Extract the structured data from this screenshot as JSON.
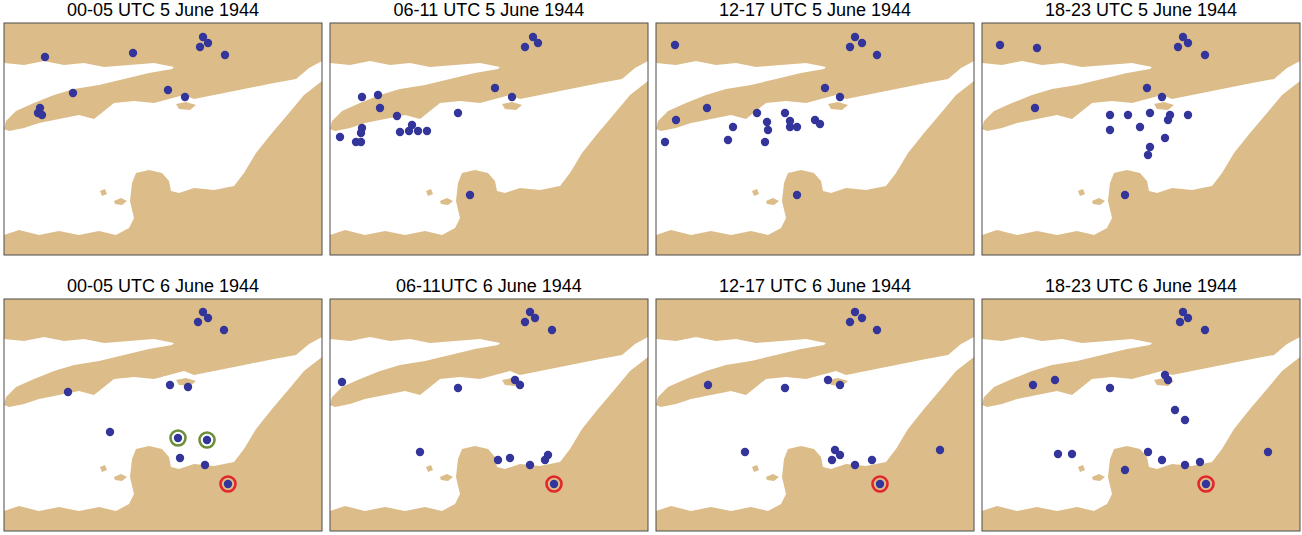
{
  "chart_data": [
    {
      "type": "scatter",
      "title": "00-05 UTC 5 June 1944",
      "color": "#34359a",
      "marker": "circle",
      "tick_labels": false,
      "xlim": [
        -6,
        1.95
      ],
      "ylim": [
        47.56,
        52.2
      ],
      "x": [
        -4.975,
        -2.775,
        -1.025,
        -0.9,
        -1.1,
        -0.475,
        -4.275,
        -1.9,
        -1.475,
        -5.1,
        -5.15,
        -5.05
      ],
      "y": [
        51.52,
        51.6,
        51.92,
        51.8,
        51.72,
        51.56,
        50.8,
        50.86,
        50.72,
        50.5,
        50.4,
        50.36
      ]
    },
    {
      "type": "scatter",
      "title": "06-11 UTC 5 June 1944",
      "color": "#34359a",
      "marker": "circle",
      "tick_labels": false,
      "xlim": [
        -6,
        1.95
      ],
      "ylim": [
        47.56,
        52.2
      ],
      "x": [
        -0.925,
        -0.8,
        -1.125,
        -1.875,
        -1.45,
        -5.2,
        -4.8,
        -4.75,
        -4.325,
        -3.95,
        -4.25,
        -4.025,
        -3.8,
        -3.575,
        -5.2,
        -5.225,
        -5.75,
        -5.35,
        -5.225,
        -2.8,
        -2.5
      ],
      "y": [
        51.92,
        51.8,
        51.72,
        50.9,
        50.72,
        50.72,
        50.76,
        50.5,
        50.34,
        50.16,
        50.02,
        50.04,
        50.04,
        50.04,
        50.1,
        50.0,
        49.92,
        49.82,
        49.82,
        50.4,
        48.76
      ]
    },
    {
      "type": "scatter",
      "title": "12-17 UTC 5 June 1944",
      "color": "#34359a",
      "marker": "circle",
      "tick_labels": false,
      "xlim": [
        -6,
        1.95
      ],
      "ylim": [
        47.56,
        52.2
      ],
      "x": [
        -5.525,
        -1.025,
        -0.85,
        -1.15,
        -0.475,
        -1.775,
        -1.4,
        -4.725,
        -4.075,
        -3.475,
        -3.225,
        -3.2,
        -2.775,
        -2.65,
        -2.475,
        -2.65,
        -2.025,
        -1.9,
        -4.2,
        -3.275,
        -5.5,
        -5.775,
        -2.475
      ],
      "y": [
        51.76,
        51.92,
        51.8,
        51.72,
        51.56,
        50.9,
        50.72,
        50.5,
        50.12,
        50.4,
        50.22,
        50.06,
        50.4,
        50.12,
        50.12,
        50.24,
        50.26,
        50.18,
        49.86,
        49.82,
        50.26,
        49.82,
        48.76
      ]
    },
    {
      "type": "scatter",
      "title": "18-23 UTC 5 June 1944",
      "color": "#34359a",
      "marker": "circle",
      "tick_labels": false,
      "xlim": [
        -6,
        1.95
      ],
      "ylim": [
        47.56,
        52.2
      ],
      "x": [
        -5.55,
        -4.625,
        -0.975,
        -0.85,
        -1.1,
        -0.425,
        -1.875,
        -1.5,
        -4.675,
        -2.8,
        -2.35,
        -2.05,
        -1.8,
        -1.3,
        -1.35,
        -0.85,
        -2.8,
        -1.425,
        -1.8,
        -1.85,
        -2.425
      ],
      "y": [
        51.76,
        51.7,
        51.92,
        51.8,
        51.72,
        51.56,
        50.9,
        50.72,
        50.5,
        50.36,
        50.36,
        50.12,
        50.4,
        50.36,
        50.26,
        50.36,
        50.06,
        49.9,
        49.72,
        49.56,
        48.76
      ]
    },
    {
      "type": "scatter",
      "title": "00-05 UTC 6 June 1944",
      "color": "#34359a",
      "marker": "circle",
      "tick_labels": false,
      "xlim": [
        -6,
        1.95
      ],
      "ylim": [
        47.56,
        52.2
      ],
      "x": [
        -1.025,
        -0.9,
        -1.15,
        -0.5,
        -4.4,
        -1.85,
        -1.4,
        -3.35,
        -1.65,
        -0.925,
        -1.6,
        -0.975,
        -0.4
      ],
      "y": [
        51.94,
        51.82,
        51.74,
        51.58,
        50.34,
        50.48,
        50.44,
        49.54,
        49.42,
        49.38,
        49.02,
        48.88,
        48.5
      ],
      "rings": [
        {
          "x": -1.65,
          "y": 49.42,
          "color": "#6b8f3a"
        },
        {
          "x": -0.925,
          "y": 49.38,
          "color": "#6b8f3a"
        },
        {
          "x": -0.4,
          "y": 48.5,
          "color": "#e3262b"
        }
      ]
    },
    {
      "type": "scatter",
      "title": "06-11UTC 6 June 1944",
      "color": "#34359a",
      "marker": "circle",
      "tick_labels": false,
      "xlim": [
        -6,
        1.95
      ],
      "ylim": [
        47.56,
        52.2
      ],
      "x": [
        -1.0,
        -0.875,
        -1.125,
        -0.45,
        -5.7,
        -2.8,
        -1.375,
        -1.25,
        -3.75,
        -1.8,
        -1.5,
        -1.0,
        -0.625,
        -0.55,
        -0.4
      ],
      "y": [
        51.94,
        51.82,
        51.74,
        51.58,
        50.54,
        50.42,
        50.58,
        50.48,
        49.14,
        48.98,
        49.02,
        48.88,
        48.98,
        49.08,
        48.5
      ],
      "rings": [
        {
          "x": -0.4,
          "y": 48.5,
          "color": "#e3262b"
        }
      ]
    },
    {
      "type": "scatter",
      "title": "12-17 UTC 6 June 1944",
      "color": "#34359a",
      "marker": "circle",
      "tick_labels": false,
      "xlim": [
        -6,
        1.95
      ],
      "ylim": [
        47.56,
        52.2
      ],
      "x": [
        -1.025,
        -0.85,
        -1.15,
        -0.475,
        -4.7,
        -2.775,
        -1.7,
        -1.4,
        -3.775,
        -1.525,
        -1.4,
        -1.6,
        -1.025,
        -0.6,
        1.1,
        -0.4
      ],
      "y": [
        51.94,
        51.82,
        51.74,
        51.58,
        50.48,
        50.42,
        50.58,
        50.48,
        49.14,
        49.18,
        49.08,
        48.98,
        48.88,
        48.98,
        49.18,
        48.5
      ],
      "rings": [
        {
          "x": -0.4,
          "y": 48.5,
          "color": "#e3262b"
        }
      ]
    },
    {
      "type": "scatter",
      "title": "18-23 UTC 6 June 1944",
      "color": "#34359a",
      "marker": "circle",
      "tick_labels": false,
      "xlim": [
        -6,
        1.95
      ],
      "ylim": [
        47.56,
        52.2
      ],
      "x": [
        -0.975,
        -0.85,
        -1.05,
        -0.425,
        -4.725,
        -4.175,
        -2.8,
        -1.425,
        -1.35,
        -1.175,
        -0.925,
        -4.1,
        -3.75,
        -1.85,
        -1.5,
        -0.925,
        -0.55,
        -2.425,
        1.15,
        -0.4
      ],
      "y": [
        51.94,
        51.82,
        51.74,
        51.58,
        50.48,
        50.58,
        50.42,
        50.68,
        50.58,
        49.98,
        49.78,
        49.1,
        49.1,
        49.14,
        48.98,
        48.88,
        48.94,
        48.78,
        49.14,
        48.5
      ],
      "rings": [
        {
          "x": -0.4,
          "y": 48.5,
          "color": "#e3262b"
        }
      ]
    }
  ]
}
